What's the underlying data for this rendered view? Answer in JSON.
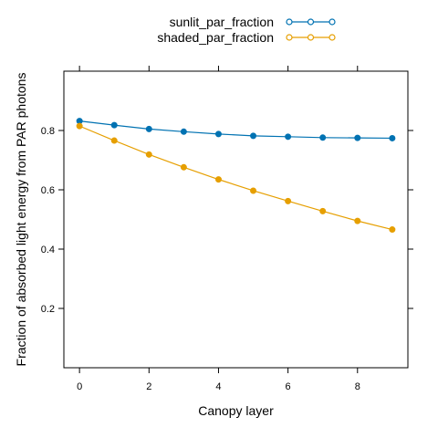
{
  "chart_data": {
    "type": "line",
    "title": "",
    "xlabel": "Canopy layer",
    "ylabel": "Fraction of absorbed light energy from PAR photons",
    "x": [
      0,
      1,
      2,
      3,
      4,
      5,
      6,
      7,
      8,
      9
    ],
    "xlim": [
      -0.45,
      9.45
    ],
    "ylim": [
      0.0,
      1.0
    ],
    "xticks": [
      0,
      2,
      4,
      6,
      8
    ],
    "yticks": [
      0.2,
      0.4,
      0.6,
      0.8
    ],
    "grid": false,
    "legend_position": "top",
    "series": [
      {
        "name": "sunlit_par_fraction",
        "color": "#0072B2",
        "values": [
          0.832,
          0.818,
          0.805,
          0.796,
          0.788,
          0.782,
          0.779,
          0.776,
          0.775,
          0.774
        ]
      },
      {
        "name": "shaded_par_fraction",
        "color": "#E69F00",
        "values": [
          0.815,
          0.766,
          0.719,
          0.676,
          0.635,
          0.597,
          0.562,
          0.528,
          0.495,
          0.466
        ]
      }
    ]
  }
}
